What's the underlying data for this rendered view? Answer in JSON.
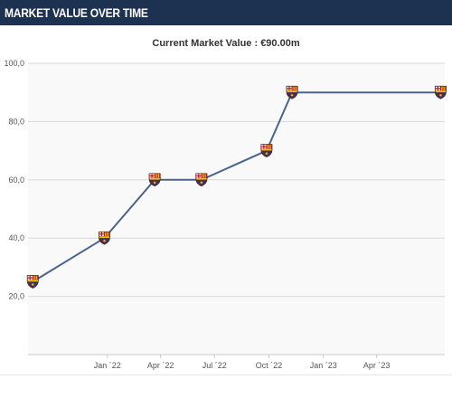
{
  "header": {
    "title": "MARKET VALUE OVER TIME"
  },
  "chart_data": {
    "type": "line",
    "title": "Current Market Value : €90.00m",
    "xlabel": "",
    "ylabel": "",
    "y_ticks": [
      "20,0",
      "40,0",
      "60,0",
      "80,0",
      "100,0"
    ],
    "y_tick_values": [
      20,
      40,
      60,
      80,
      100
    ],
    "ylim": [
      0,
      100
    ],
    "x_ticks": [
      "Jan ´22",
      "Apr ´22",
      "Jul ´22",
      "Oct ´22",
      "Jan ´23",
      "Apr ´23"
    ],
    "x_tick_dates": [
      "2022-01-01",
      "2022-04-01",
      "2022-07-01",
      "2022-10-01",
      "2023-01-01",
      "2023-04-01"
    ],
    "xlim": [
      "2021-08-20",
      "2023-07-25"
    ],
    "grid": true,
    "marker_icon": "fc-barcelona-crest-icon",
    "colors": {
      "line": "#4a6589",
      "plot_bg": "#f9f9f9",
      "grid": "#d8d8d8",
      "header_bg": "#1d3150"
    },
    "series": [
      {
        "points": [
          {
            "x": "2021-08-28",
            "y": 25
          },
          {
            "x": "2021-12-27",
            "y": 40
          },
          {
            "x": "2022-03-22",
            "y": 60
          },
          {
            "x": "2022-06-09",
            "y": 60
          },
          {
            "x": "2022-09-27",
            "y": 70
          },
          {
            "x": "2022-11-09",
            "y": 90
          },
          {
            "x": "2023-07-18",
            "y": 90
          }
        ]
      }
    ]
  }
}
